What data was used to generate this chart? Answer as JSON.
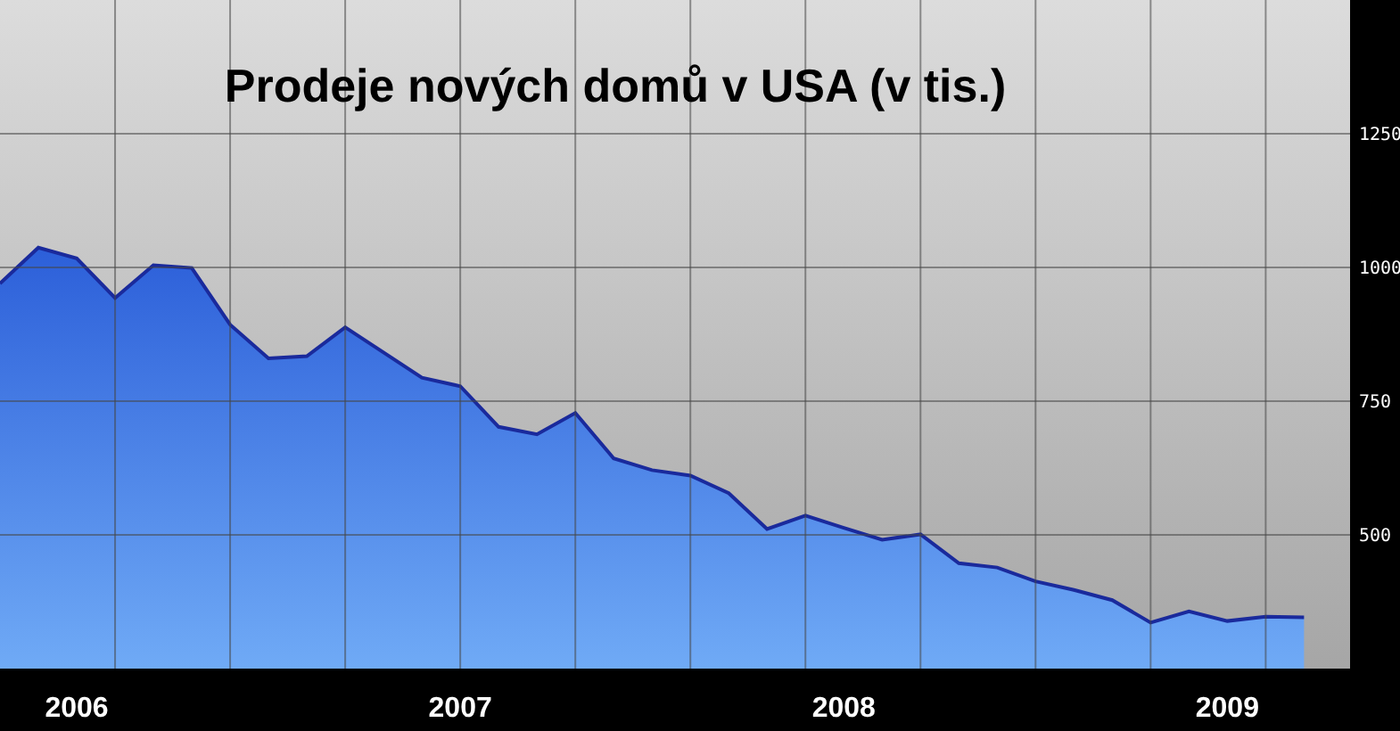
{
  "chart_data": {
    "type": "area",
    "title": "Prodeje nových domů v USA (v tis.)",
    "categories": [
      null,
      null,
      "2006",
      null,
      null,
      null,
      null,
      null,
      null,
      null,
      null,
      null,
      "2007",
      null,
      null,
      null,
      null,
      null,
      null,
      null,
      null,
      null,
      "2008",
      null,
      null,
      null,
      null,
      null,
      null,
      null,
      null,
      null,
      "2009",
      null,
      null
    ],
    "series": [
      {
        "color": "#1a2a9c",
        "values": [
          970,
          1037,
          1017,
          943,
          1004,
          999,
          893,
          830,
          834,
          888,
          841,
          794,
          778,
          702,
          688,
          728,
          643,
          621,
          611,
          578,
          511,
          536,
          513,
          491,
          501,
          447,
          439,
          413,
          397,
          378,
          336,
          357,
          339,
          347,
          346
        ]
      }
    ],
    "ylim": [
      250,
      1500
    ],
    "yticks": [
      500,
      750,
      1000,
      1250
    ],
    "grid": true
  }
}
